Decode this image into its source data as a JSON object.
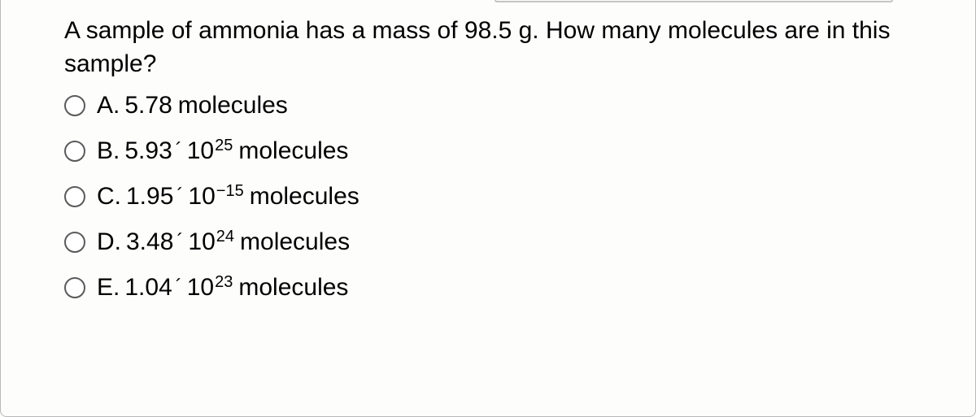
{
  "question": "A sample of ammonia has a mass of 98.5 g. How many molecules are in this sample?",
  "options": [
    {
      "letter": "A.",
      "coefficient": "5.78",
      "hasExponent": false,
      "base": "",
      "exponent": "",
      "unit": "molecules"
    },
    {
      "letter": "B.",
      "coefficient": "5.93",
      "hasExponent": true,
      "base": "10",
      "exponent": "25",
      "unit": "molecules"
    },
    {
      "letter": "C.",
      "coefficient": "1.95",
      "hasExponent": true,
      "base": "10",
      "exponent": "−15",
      "unit": "molecules"
    },
    {
      "letter": "D.",
      "coefficient": "3.48",
      "hasExponent": true,
      "base": "10",
      "exponent": "24",
      "unit": "molecules"
    },
    {
      "letter": "E.",
      "coefficient": "1.04",
      "hasExponent": true,
      "base": "10",
      "exponent": "23",
      "unit": "molecules"
    }
  ],
  "multiplySymbol": "´",
  "colors": {
    "text": "#000000",
    "background": "#fdfdfc",
    "radioBorder": "#5a5a5a",
    "containerBorder": "#b8b8b8"
  }
}
